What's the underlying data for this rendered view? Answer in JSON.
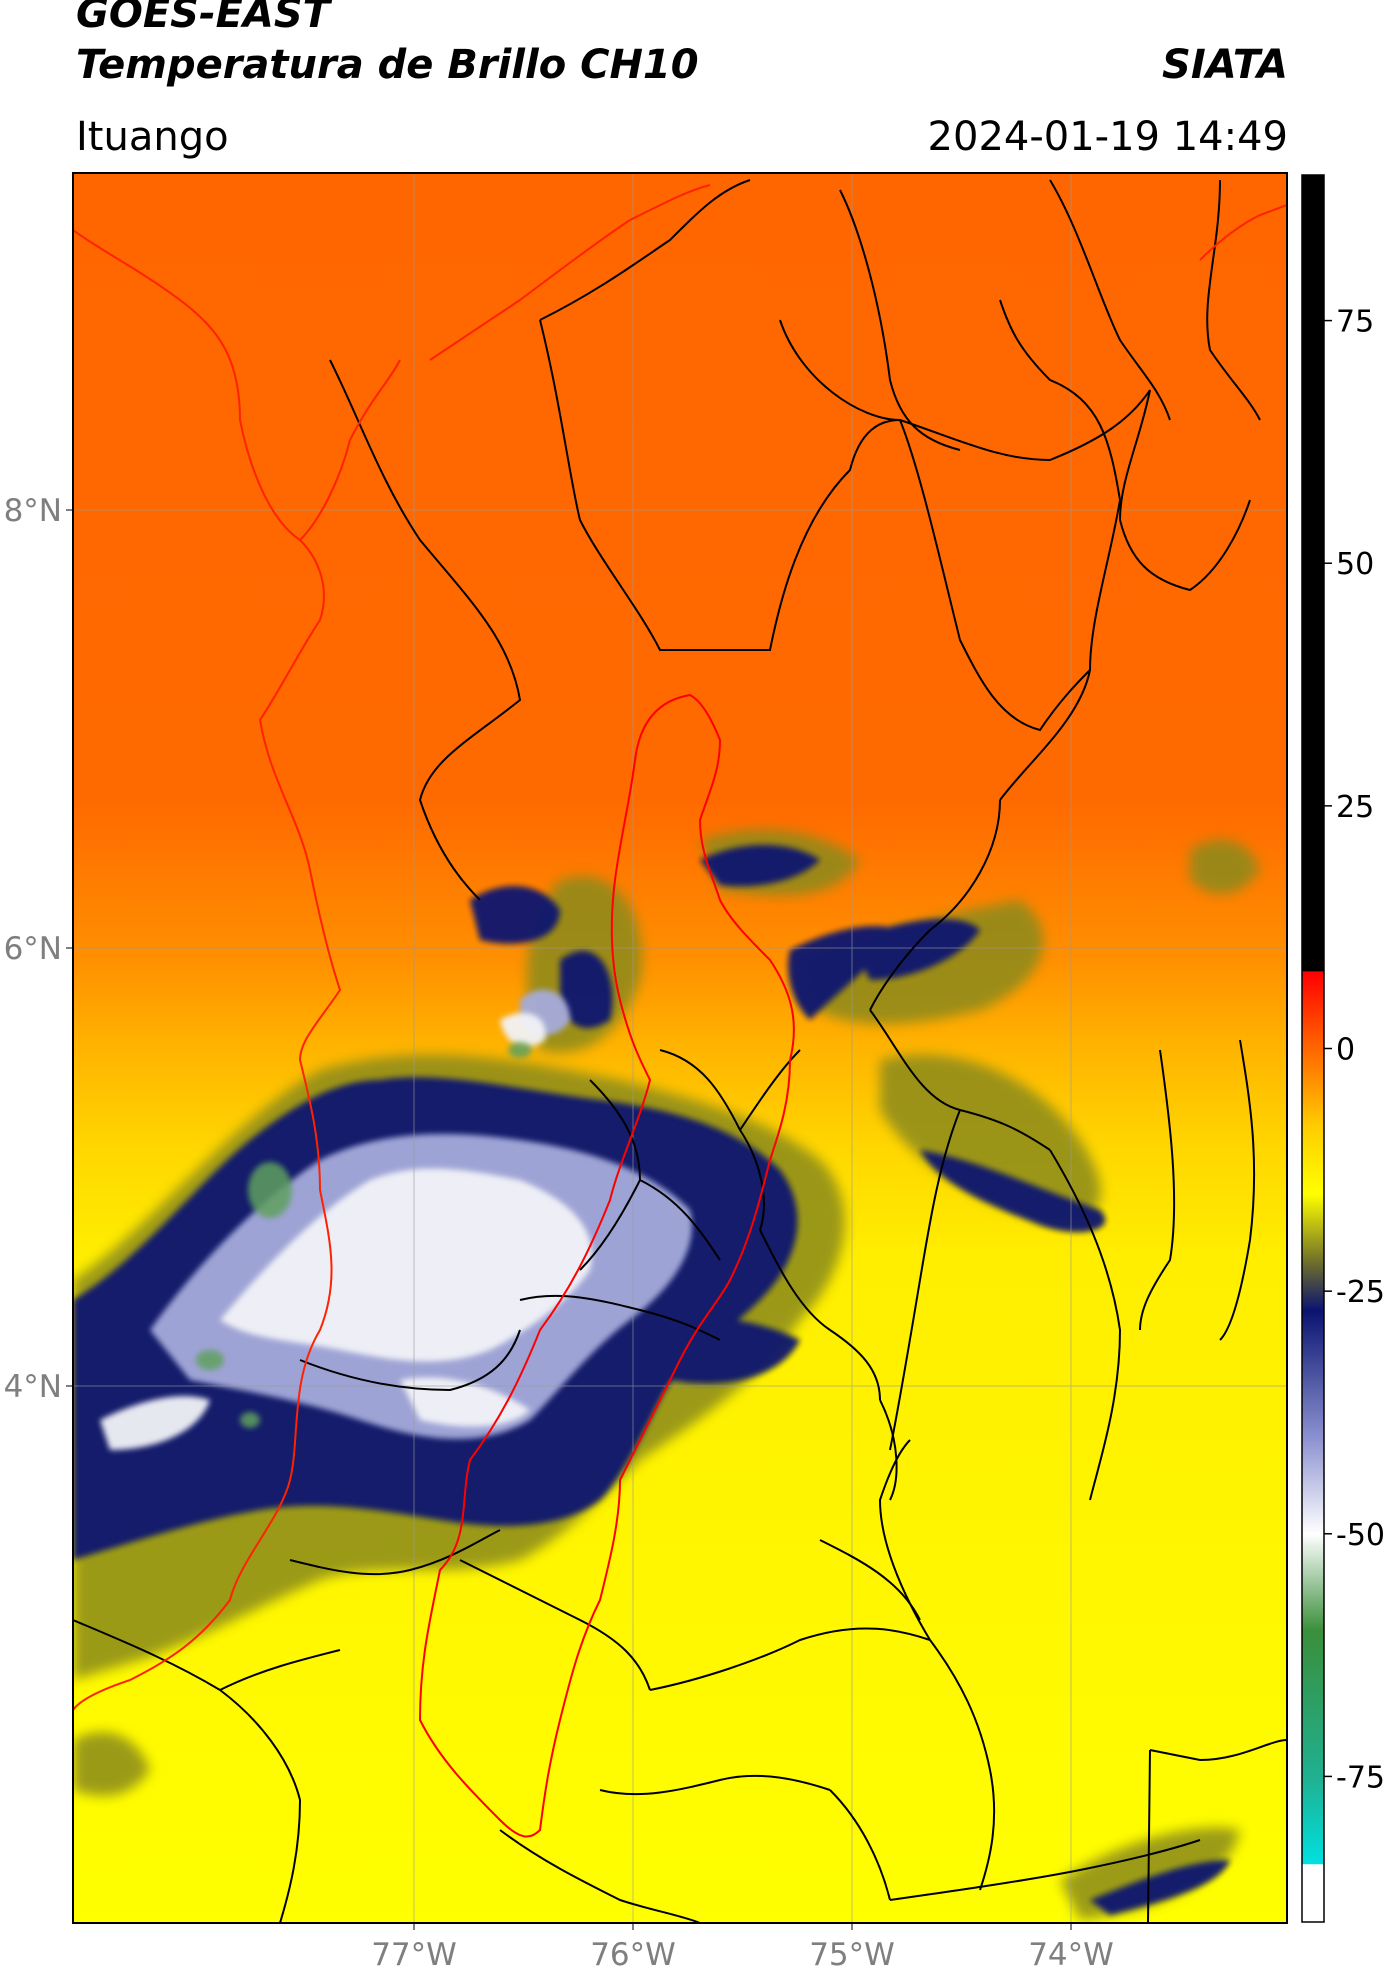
{
  "header": {
    "satellite": "GOES-EAST",
    "product": "Temperatura de Brillo CH10",
    "agency": "SIATA",
    "region": "Ituango",
    "datetime": "2024-01-19 14:49"
  },
  "map": {
    "lat_labels": [
      {
        "text": "8°N",
        "lat": 8
      },
      {
        "text": "6°N",
        "lat": 6
      },
      {
        "text": "4°N",
        "lat": 4
      }
    ],
    "lon_labels": [
      {
        "text": "77°W",
        "lon": -77
      },
      {
        "text": "76°W",
        "lon": -76
      },
      {
        "text": "75°W",
        "lon": -75
      },
      {
        "text": "74°W",
        "lon": -74
      }
    ],
    "colors": {
      "warm": "#ff6600",
      "mid": "#ff9900",
      "yellow": "#ffff00",
      "olive": "#8a8a1a",
      "navy": "#0a1470",
      "lavender": "#b8bce0",
      "white": "#f4f4f8",
      "green": "#3c8a3c",
      "border_black": "#000000",
      "basin_red": "#ff0000",
      "gridline": "#9a9a9a"
    }
  },
  "colorbar": {
    "ticks": [
      {
        "text": "75",
        "value": 75
      },
      {
        "text": "50",
        "value": 50
      },
      {
        "text": "25",
        "value": 25
      },
      {
        "text": "0",
        "value": 0
      },
      {
        "text": "-25",
        "value": -25
      },
      {
        "text": "-50",
        "value": -50
      },
      {
        "text": "-75",
        "value": -75
      }
    ],
    "range": [
      -90,
      90
    ],
    "stops": [
      {
        "value": 90,
        "color": "#000000"
      },
      {
        "value": 8,
        "color": "#000000"
      },
      {
        "value": 7.9,
        "color": "#ff0000"
      },
      {
        "value": 0,
        "color": "#ff6600"
      },
      {
        "value": -8,
        "color": "#ffcc00"
      },
      {
        "value": -15,
        "color": "#ffff00"
      },
      {
        "value": -22,
        "color": "#6f6f2a"
      },
      {
        "value": -27,
        "color": "#0a1470"
      },
      {
        "value": -40,
        "color": "#8a90cf"
      },
      {
        "value": -50,
        "color": "#ffffff"
      },
      {
        "value": -60,
        "color": "#3a8f3a"
      },
      {
        "value": -75,
        "color": "#20b090"
      },
      {
        "value": -84,
        "color": "#00e0e0"
      },
      {
        "value": -84.1,
        "color": "#ffffff"
      },
      {
        "value": -90,
        "color": "#ffffff"
      }
    ]
  }
}
